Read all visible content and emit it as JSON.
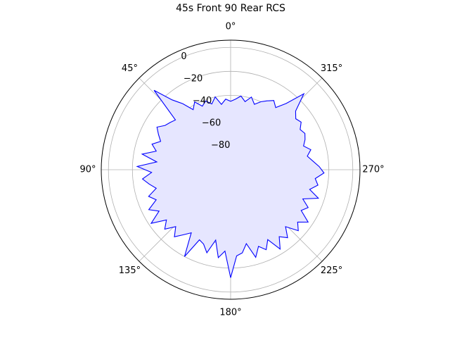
{
  "chart_data": {
    "type": "polar-line",
    "title": "45s Front 90 Rear RCS",
    "theta_direction": "counterclockwise",
    "theta_zero": "top",
    "theta_tick_labels": [
      "0°",
      "45°",
      "90°",
      "135°",
      "180°",
      "225°",
      "270°",
      "315°"
    ],
    "theta_tick_values": [
      0,
      45,
      90,
      135,
      180,
      225,
      270,
      315
    ],
    "r_tick_labels": [
      "0",
      "−20",
      "−40",
      "−60",
      "−80"
    ],
    "r_tick_values": [
      0,
      -20,
      -40,
      -60,
      -80
    ],
    "rlim": [
      -102,
      6
    ],
    "grid": true,
    "line_color": "#0000ff",
    "fill_color": "#e6e6ff",
    "series": [
      {
        "theta": [
          0,
          4,
          8,
          12,
          16,
          20,
          24,
          28,
          32,
          36,
          40,
          44,
          48,
          52,
          56,
          60,
          64,
          68,
          72,
          76,
          80,
          84,
          88,
          92,
          96,
          100,
          104,
          108,
          112,
          116,
          120,
          124,
          128,
          132,
          136,
          140,
          144,
          148,
          152,
          156,
          160,
          164,
          168,
          172,
          176,
          180,
          184,
          188,
          192,
          196,
          200,
          204,
          208,
          212,
          216,
          220,
          224,
          228,
          232,
          236,
          240,
          244,
          248,
          252,
          256,
          260,
          264,
          268,
          272,
          276,
          280,
          284,
          288,
          292,
          296,
          300,
          304,
          308,
          312,
          316,
          320,
          324,
          328,
          332,
          336,
          340,
          344,
          348,
          352,
          356,
          360
        ],
        "values": [
          -45,
          -43,
          -47,
          -40,
          -45,
          -41,
          -44,
          -38,
          -43,
          -34,
          -26,
          -10,
          -40,
          -38,
          -36,
          -31,
          -35,
          -39,
          -33,
          -38,
          -27,
          -40,
          -24,
          -36,
          -28,
          -33,
          -38,
          -30,
          -35,
          -26,
          -33,
          -22,
          -34,
          -28,
          -36,
          -29,
          -35,
          -40,
          -20,
          -38,
          -36,
          -30,
          -42,
          -28,
          -34,
          -12,
          -30,
          -32,
          -39,
          -26,
          -34,
          -29,
          -36,
          -24,
          -33,
          -28,
          -36,
          -26,
          -31,
          -24,
          -34,
          -30,
          -37,
          -25,
          -34,
          -28,
          -31,
          -24,
          -28,
          -33,
          -37,
          -33,
          -38,
          -35,
          -33,
          -35,
          -31,
          -33,
          -29,
          -14,
          -30,
          -38,
          -34,
          -37,
          -40,
          -44,
          -39,
          -44,
          -40,
          -43,
          -45
        ]
      }
    ]
  }
}
